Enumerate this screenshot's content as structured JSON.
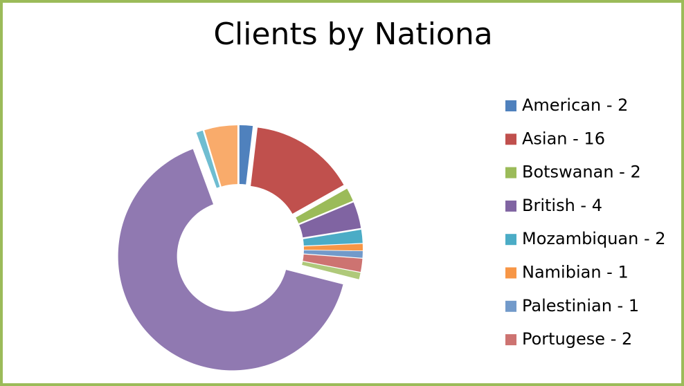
{
  "chart_data": {
    "type": "donut",
    "title": "Clients by Nationa",
    "categories": [
      "American - 2",
      "Asian - 16",
      "Botswanan - 2",
      "British - 4",
      "Mozambiquan - 2",
      "Namibian - 1",
      "Palestinian - 1",
      "Portugese - 2",
      null,
      null,
      null,
      null
    ],
    "values": [
      2,
      16,
      2,
      4,
      2,
      1,
      1,
      2,
      1,
      70,
      1,
      5
    ],
    "colors": [
      "#4F81BD",
      "#C0504D",
      "#9BBB59",
      "#8064A2",
      "#4BACC6",
      "#F79646",
      "#729ACA",
      "#CD7371",
      "#AFC97A",
      "#9079B1",
      "#6FBDD1",
      "#F9AB6B"
    ],
    "legend": "right"
  }
}
